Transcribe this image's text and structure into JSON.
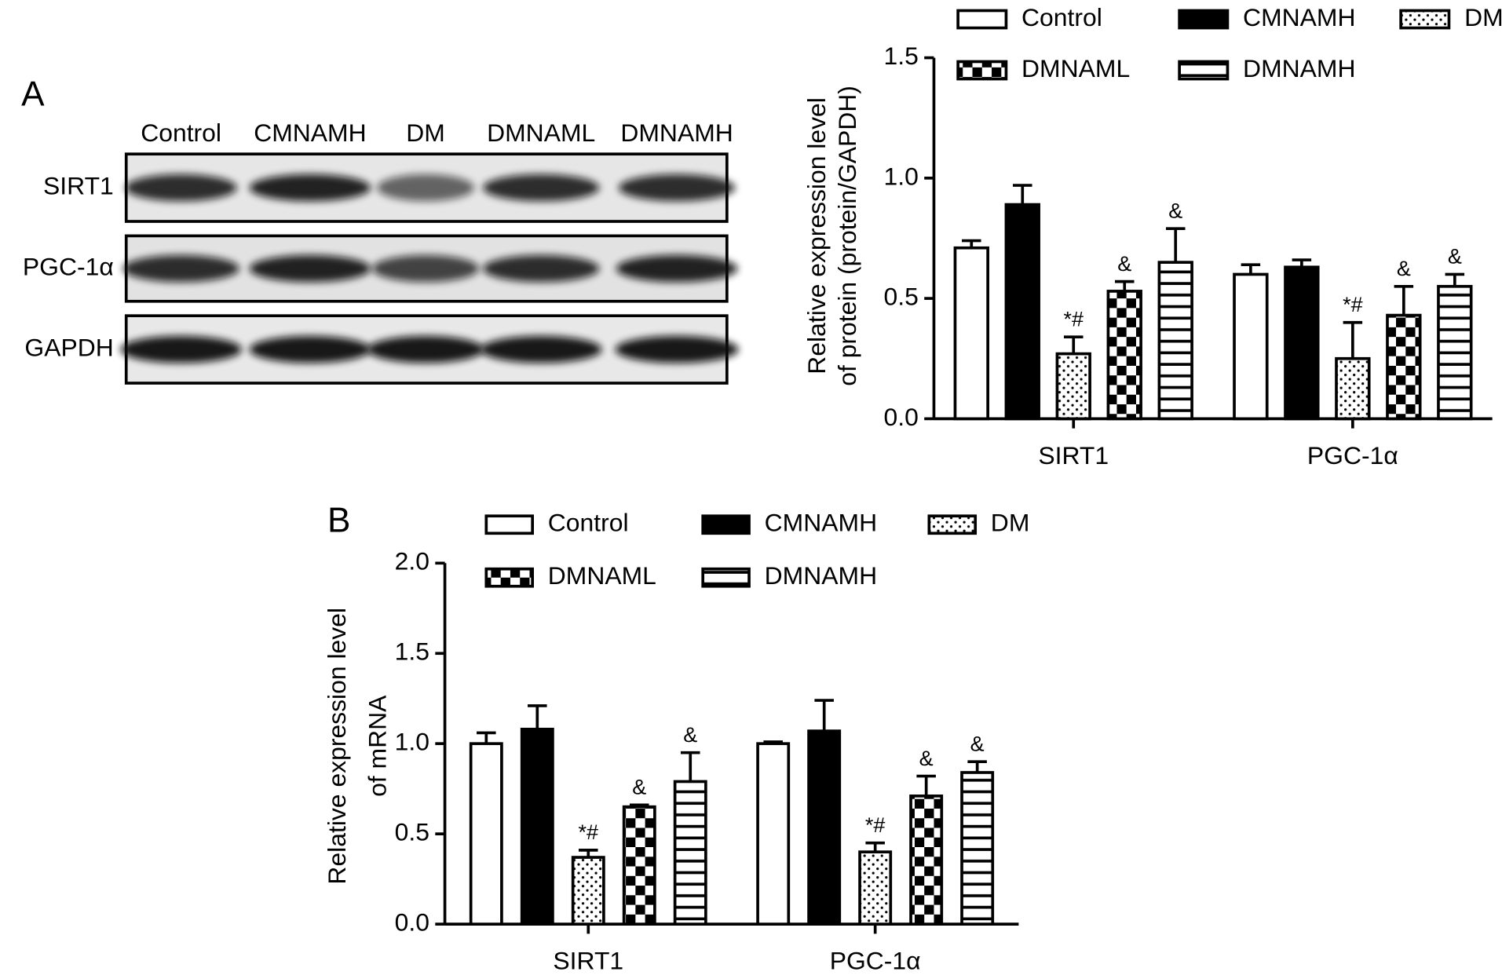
{
  "panels": [
    "A",
    "B"
  ],
  "blot": {
    "lanes": [
      "Control",
      "CMNAMH",
      "DM",
      "DMNAML",
      "DMNAMH"
    ],
    "rows": [
      "SIRT1",
      "PGC-1α",
      "GAPDH"
    ]
  },
  "chart_data": [
    {
      "type": "bar",
      "ylabel": [
        "Relative expression level",
        "of protein (protein/GAPDH)"
      ],
      "categories": [
        "SIRT1",
        "PGC-1α"
      ],
      "ylim": [
        0,
        1.5
      ],
      "yticks": [
        {
          "value": 0,
          "label": "0.0"
        },
        0.5,
        {
          "value": 1,
          "label": "1.0"
        },
        1.5
      ],
      "series": [
        {
          "name": "Control",
          "color": "#000000",
          "pattern": "none",
          "values": [
            0.71,
            0.6
          ],
          "errors": [
            0.03,
            0.04
          ],
          "annotations": [
            null,
            null
          ]
        },
        {
          "name": "CMNAMH",
          "color": "#000000",
          "pattern": "solid",
          "values": [
            0.89,
            0.63
          ],
          "errors": [
            0.08,
            0.03
          ],
          "annotations": [
            null,
            null
          ]
        },
        {
          "name": "DM",
          "color": "#000000",
          "pattern": "dots",
          "values": [
            0.27,
            0.25
          ],
          "errors": [
            0.07,
            0.15
          ],
          "annotations": [
            "*#",
            "*#"
          ]
        },
        {
          "name": "DMNAML",
          "color": "#000000",
          "pattern": "checker",
          "values": [
            0.53,
            0.43
          ],
          "errors": [
            0.04,
            0.12
          ],
          "annotations": [
            "&",
            "&"
          ]
        },
        {
          "name": "DMNAMH",
          "color": "#000000",
          "pattern": "hstripes",
          "values": [
            0.65,
            0.55
          ],
          "errors": [
            0.14,
            0.05
          ],
          "annotations": [
            "&",
            "&"
          ]
        }
      ]
    },
    {
      "type": "bar",
      "ylabel": [
        "Relative expression level",
        "of mRNA"
      ],
      "categories": [
        "SIRT1",
        "PGC-1α"
      ],
      "ylim": [
        0,
        2
      ],
      "yticks": [
        {
          "value": 0,
          "label": "0.0"
        },
        0.5,
        {
          "value": 1,
          "label": "1.0"
        },
        1.5,
        {
          "value": 2,
          "label": "2.0"
        }
      ],
      "series": [
        {
          "name": "Control",
          "color": "#000000",
          "pattern": "none",
          "values": [
            1.0,
            1.0
          ],
          "errors": [
            0.06,
            0.01
          ],
          "annotations": [
            null,
            null
          ]
        },
        {
          "name": "CMNAMH",
          "color": "#000000",
          "pattern": "solid",
          "values": [
            1.08,
            1.07
          ],
          "errors": [
            0.13,
            0.17
          ],
          "annotations": [
            null,
            null
          ]
        },
        {
          "name": "DM",
          "color": "#000000",
          "pattern": "dots",
          "values": [
            0.37,
            0.4
          ],
          "errors": [
            0.04,
            0.05
          ],
          "annotations": [
            "*#",
            "*#"
          ]
        },
        {
          "name": "DMNAML",
          "color": "#000000",
          "pattern": "checker",
          "values": [
            0.65,
            0.71
          ],
          "errors": [
            0.01,
            0.11
          ],
          "annotations": [
            "&",
            "&"
          ]
        },
        {
          "name": "DMNAMH",
          "color": "#000000",
          "pattern": "hstripes",
          "values": [
            0.79,
            0.84
          ],
          "errors": [
            0.16,
            0.06
          ],
          "annotations": [
            "&",
            "&"
          ]
        }
      ]
    }
  ]
}
